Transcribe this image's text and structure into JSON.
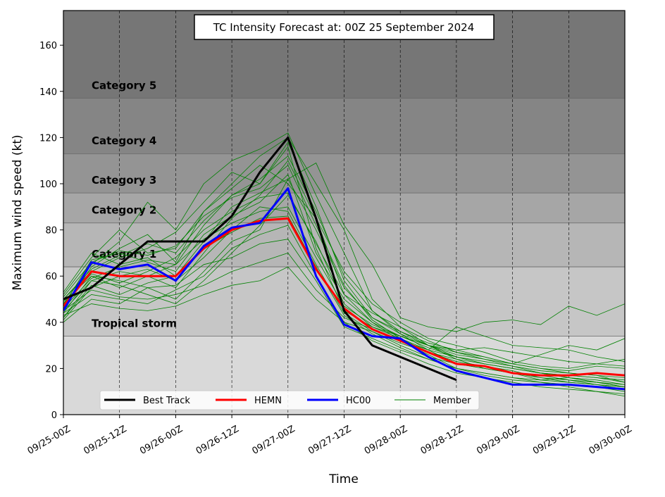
{
  "chart_data": {
    "type": "line",
    "title": "TC Intensity Forecast at: 00Z 25 September 2024",
    "xlabel": "Time",
    "ylabel": "Maximum wind speed (kt)",
    "ylim": [
      0,
      175
    ],
    "y_ticks": [
      0,
      20,
      40,
      60,
      80,
      100,
      120,
      140,
      160
    ],
    "x_ticks": [
      "09/25-00Z",
      "09/25-12Z",
      "09/26-00Z",
      "09/26-12Z",
      "09/27-00Z",
      "09/27-12Z",
      "09/28-00Z",
      "09/28-12Z",
      "09/29-00Z",
      "09/29-12Z",
      "09/30-00Z"
    ],
    "x_unit": "hours since 09/25-00Z",
    "xlim": [
      0,
      120
    ],
    "grid": "vertical dashed",
    "legend_position": "bottom",
    "categories_bands": [
      {
        "label": "Tropical storm",
        "from": 34,
        "to": 64,
        "color": "#c6c6c6"
      },
      {
        "label": "Category 1",
        "from": 64,
        "to": 83,
        "color": "#b6b6b6"
      },
      {
        "label": "Category 2",
        "from": 83,
        "to": 96,
        "color": "#a6a6a6"
      },
      {
        "label": "Category 3",
        "from": 96,
        "to": 113,
        "color": "#949494"
      },
      {
        "label": "Category 4",
        "from": 113,
        "to": 137,
        "color": "#858585"
      },
      {
        "label": "Category 5",
        "from": 137,
        "to": 175,
        "color": "#767676"
      }
    ],
    "below_band_color": "#d9d9d9",
    "series": [
      {
        "name": "Best Track",
        "color": "#000000",
        "width": 3,
        "x": [
          0,
          6,
          12,
          18,
          24,
          30,
          36,
          42,
          48,
          54,
          60,
          66,
          72,
          78,
          84
        ],
        "values": [
          50,
          55,
          65,
          75,
          75,
          75,
          86,
          105,
          120,
          85,
          45,
          30,
          25,
          20,
          15
        ]
      },
      {
        "name": "HEMN",
        "color": "#ff0000",
        "width": 3,
        "x": [
          0,
          6,
          12,
          18,
          24,
          30,
          36,
          42,
          48,
          54,
          60,
          66,
          72,
          78,
          84,
          90,
          96,
          102,
          108,
          114,
          120
        ],
        "values": [
          47,
          62,
          60,
          60,
          60,
          72,
          80,
          84,
          85,
          63,
          46,
          37,
          32,
          27,
          22,
          21,
          18,
          17,
          17,
          18,
          17
        ]
      },
      {
        "name": "HC00",
        "color": "#0000ff",
        "width": 3,
        "x": [
          0,
          6,
          12,
          18,
          24,
          30,
          36,
          42,
          48,
          54,
          60,
          66,
          72,
          78,
          84,
          90,
          96,
          102,
          108,
          114,
          120
        ],
        "values": [
          45,
          66,
          63,
          65,
          58,
          73,
          81,
          83,
          98,
          60,
          39,
          34,
          33,
          25,
          19,
          16,
          13,
          13,
          13,
          12,
          11
        ]
      },
      {
        "name": "Member",
        "color": "#008000",
        "width": 0.8,
        "members": [
          [
            52,
            68,
            80,
            70,
            72,
            88,
            100,
            112,
            120,
            100,
            80,
            50,
            38,
            30,
            25,
            22,
            20,
            18,
            17,
            16,
            14
          ],
          [
            42,
            58,
            62,
            60,
            55,
            70,
            85,
            95,
            110,
            85,
            52,
            40,
            32,
            26,
            20,
            18,
            16,
            15,
            14,
            13,
            12
          ],
          [
            48,
            65,
            75,
            92,
            80,
            100,
            110,
            115,
            122,
            95,
            70,
            45,
            35,
            28,
            22,
            20,
            18,
            15,
            16,
            14,
            12
          ],
          [
            44,
            60,
            55,
            60,
            65,
            82,
            95,
            100,
            118,
            90,
            58,
            42,
            35,
            30,
            28,
            25,
            22,
            20,
            18,
            17,
            16
          ],
          [
            50,
            62,
            68,
            72,
            79,
            92,
            105,
            100,
            116,
            72,
            45,
            38,
            34,
            30,
            24,
            20,
            18,
            17,
            15,
            14,
            13
          ],
          [
            40,
            50,
            48,
            55,
            50,
            62,
            75,
            80,
            102,
            109,
            82,
            65,
            42,
            38,
            36,
            40,
            41,
            39,
            47,
            43,
            48
          ],
          [
            46,
            64,
            72,
            78,
            66,
            88,
            98,
            108,
            100,
            85,
            62,
            48,
            40,
            33,
            30,
            27,
            23,
            21,
            20,
            22,
            24
          ],
          [
            53,
            70,
            65,
            68,
            60,
            75,
            90,
            96,
            102,
            80,
            55,
            42,
            36,
            30,
            26,
            24,
            22,
            26,
            30,
            28,
            33
          ],
          [
            45,
            58,
            56,
            52,
            48,
            58,
            70,
            82,
            95,
            75,
            48,
            38,
            33,
            28,
            38,
            34,
            30,
            29,
            28,
            25,
            23
          ],
          [
            41,
            55,
            60,
            63,
            58,
            68,
            80,
            90,
            88,
            65,
            44,
            36,
            30,
            25,
            22,
            20,
            18,
            16,
            15,
            13,
            11
          ],
          [
            47,
            67,
            70,
            66,
            62,
            78,
            86,
            92,
            104,
            70,
            50,
            40,
            34,
            30,
            27,
            25,
            22,
            20,
            19,
            21,
            20
          ],
          [
            44,
            52,
            50,
            48,
            54,
            60,
            72,
            78,
            82,
            60,
            40,
            32,
            27,
            22,
            18,
            16,
            14,
            12,
            11,
            10,
            9
          ],
          [
            49,
            60,
            58,
            55,
            56,
            65,
            68,
            74,
            76,
            58,
            38,
            33,
            28,
            24,
            20,
            18,
            16,
            14,
            12,
            10,
            8
          ],
          [
            43,
            48,
            46,
            45,
            47,
            52,
            56,
            58,
            64,
            50,
            40,
            36,
            31,
            27,
            24,
            22,
            20,
            18,
            17,
            16,
            15
          ],
          [
            50,
            63,
            69,
            74,
            70,
            84,
            95,
            102,
            112,
            88,
            60,
            45,
            36,
            31,
            28,
            29,
            27,
            25,
            23,
            22,
            21
          ],
          [
            46,
            59,
            64,
            67,
            65,
            76,
            83,
            88,
            90,
            68,
            47,
            39,
            34,
            29,
            25,
            23,
            21,
            19,
            18,
            17,
            14
          ],
          [
            48,
            61,
            57,
            62,
            68,
            80,
            88,
            94,
            96,
            74,
            52,
            44,
            38,
            32,
            27,
            24,
            21,
            18,
            16,
            15,
            13
          ],
          [
            42,
            56,
            52,
            57,
            60,
            72,
            79,
            85,
            86,
            64,
            43,
            35,
            29,
            24,
            20,
            17,
            15,
            14,
            13,
            12,
            10
          ],
          [
            51,
            66,
            71,
            69,
            73,
            86,
            94,
            98,
            108,
            82,
            56,
            41,
            33,
            27,
            23,
            21,
            19,
            16,
            14,
            13,
            12
          ],
          [
            45,
            54,
            51,
            50,
            52,
            56,
            62,
            66,
            70,
            54,
            42,
            37,
            32,
            28,
            25,
            22,
            20,
            18,
            16,
            14,
            12
          ]
        ]
      }
    ],
    "legend": [
      "Best Track",
      "HEMN",
      "HC00",
      "Member"
    ]
  }
}
